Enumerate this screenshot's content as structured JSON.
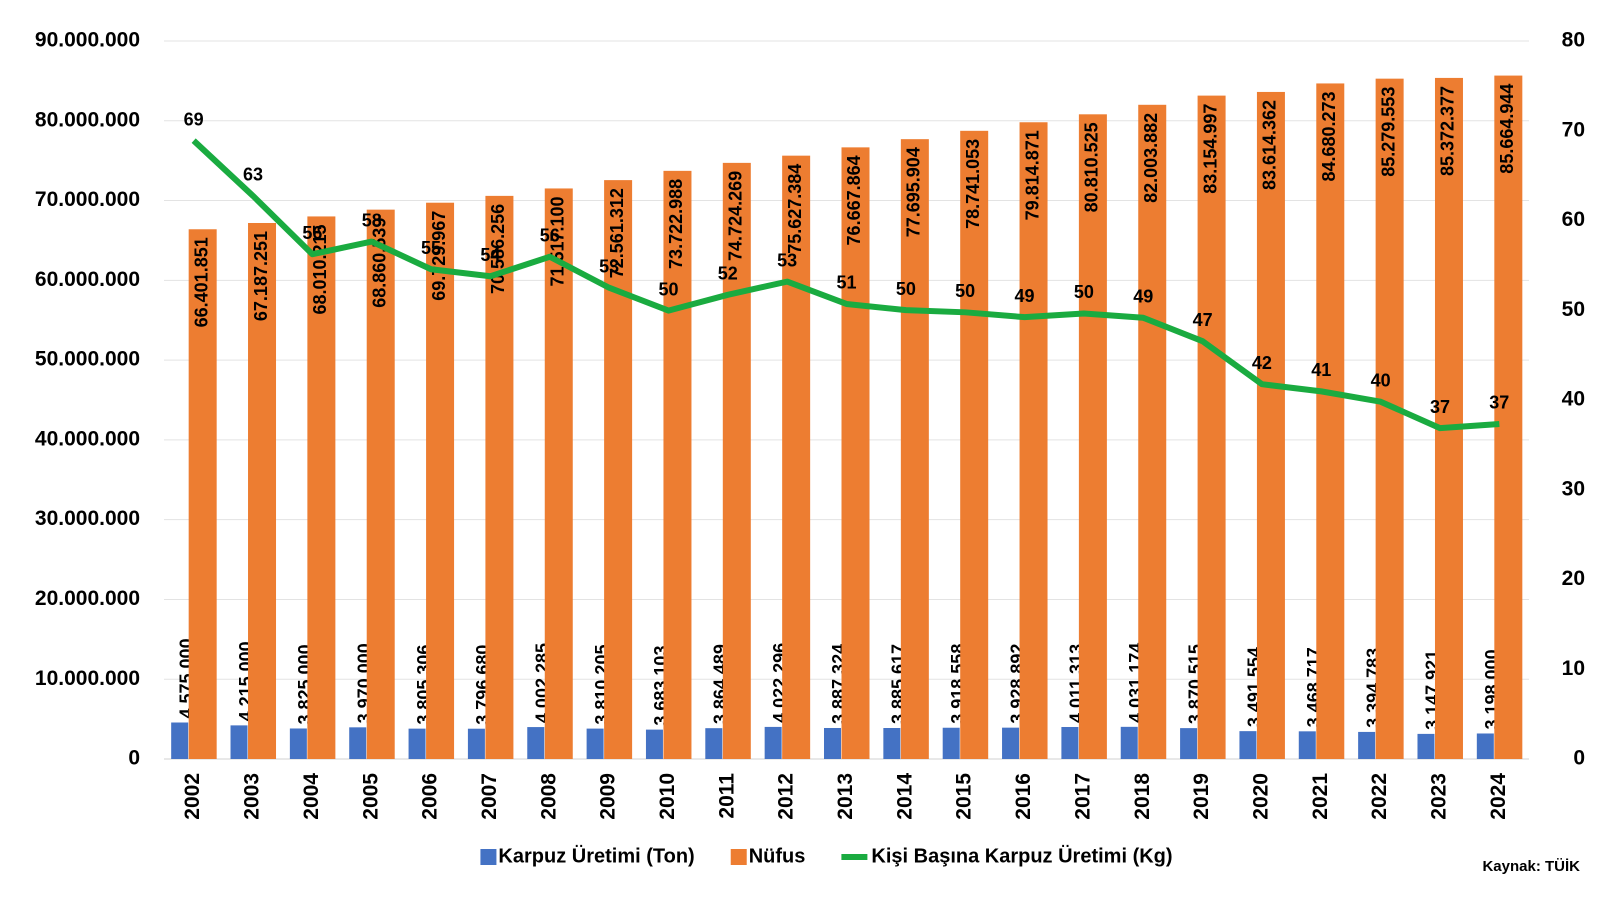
{
  "chart_data": {
    "type": "bar-line",
    "categories": [
      "2002",
      "2003",
      "2004",
      "2005",
      "2006",
      "2007",
      "2008",
      "2009",
      "2010",
      "2011",
      "2012",
      "2013",
      "2014",
      "2015",
      "2016",
      "2017",
      "2018",
      "2019",
      "2020",
      "2021",
      "2022",
      "2023",
      "2024"
    ],
    "series": [
      {
        "name": "Karpuz Üretimi (Ton)",
        "type": "bar",
        "color": "#4472c4",
        "values": [
          4575000,
          4215000,
          3825000,
          3970000,
          3805306,
          3796680,
          4002285,
          3810205,
          3683103,
          3864489,
          4022296,
          3887324,
          3885617,
          3918558,
          3928892,
          4011313,
          4031174,
          3870515,
          3491554,
          3468717,
          3394783,
          3147921,
          3198000
        ],
        "value_labels": [
          "4.575.000",
          "4.215.000",
          "3.825.000",
          "3.970.000",
          "3.805.306",
          "3.796.680",
          "4.002.285",
          "3.810.205",
          "3.683.103",
          "3.864.489",
          "4.022.296",
          "3.887.324",
          "3.885.617",
          "3.918.558",
          "3.928.892",
          "4.011.313",
          "4.031.174",
          "3.870.515",
          "3.491.554",
          "3.468.717",
          "3.394.783",
          "3.147.921",
          "3.198.000"
        ]
      },
      {
        "name": "Nüfus",
        "type": "bar",
        "color": "#ed7d31",
        "values": [
          66401851,
          67187251,
          68010215,
          68860539,
          69729967,
          70586256,
          71517100,
          72561312,
          73722988,
          74724269,
          75627384,
          76667864,
          77695904,
          78741053,
          79814871,
          80810525,
          82003882,
          83154997,
          83614362,
          84680273,
          85279553,
          85372377,
          85664944
        ],
        "value_labels": [
          "66.401.851",
          "67.187.251",
          "68.010.215",
          "68.860.539",
          "69.729.967",
          "70.586.256",
          "71.517.100",
          "72.561.312",
          "73.722.988",
          "74.724.269",
          "75.627.384",
          "76.667.864",
          "77.695.904",
          "78.741.053",
          "79.814.871",
          "80.810.525",
          "82.003.882",
          "83.154.997",
          "83.614.362",
          "84.680.273",
          "85.279.553",
          "85.372.377",
          "85.664.944"
        ]
      },
      {
        "name": "Kişi Başına Karpuz Üretimi (Kg)",
        "type": "line",
        "axis": "y2",
        "color": "#1aab40",
        "values": [
          68.9,
          62.74,
          56.24,
          57.65,
          54.57,
          53.79,
          55.96,
          52.51,
          49.96,
          51.72,
          53.19,
          50.7,
          50.01,
          49.77,
          49.23,
          49.64,
          49.16,
          46.55,
          41.76,
          40.96,
          39.81,
          36.87,
          37.33
        ],
        "value_labels": [
          "69",
          "63",
          "56",
          "58",
          "55",
          "54",
          "56",
          "53",
          "50",
          "52",
          "53",
          "51",
          "50",
          "50",
          "49",
          "50",
          "49",
          "47",
          "42",
          "41",
          "40",
          "37",
          "37"
        ]
      }
    ],
    "ylim": [
      0,
      90000000
    ],
    "yticks": [
      {
        "value": 0,
        "label": "0"
      },
      {
        "value": 10000000,
        "label": "10.000.000"
      },
      {
        "value": 20000000,
        "label": "20.000.000"
      },
      {
        "value": 30000000,
        "label": "30.000.000"
      },
      {
        "value": 40000000,
        "label": "40.000.000"
      },
      {
        "value": 50000000,
        "label": "50.000.000"
      },
      {
        "value": 60000000,
        "label": "60.000.000"
      },
      {
        "value": 70000000,
        "label": "70.000.000"
      },
      {
        "value": 80000000,
        "label": "80.000.000"
      },
      {
        "value": 90000000,
        "label": "90.000.000"
      }
    ],
    "y2lim": [
      0,
      80
    ],
    "y2ticks": [
      0,
      10,
      20,
      30,
      40,
      50,
      60,
      70,
      80
    ],
    "grid": true,
    "legend": "bottom",
    "source": "Kaynak: TÜİK"
  }
}
